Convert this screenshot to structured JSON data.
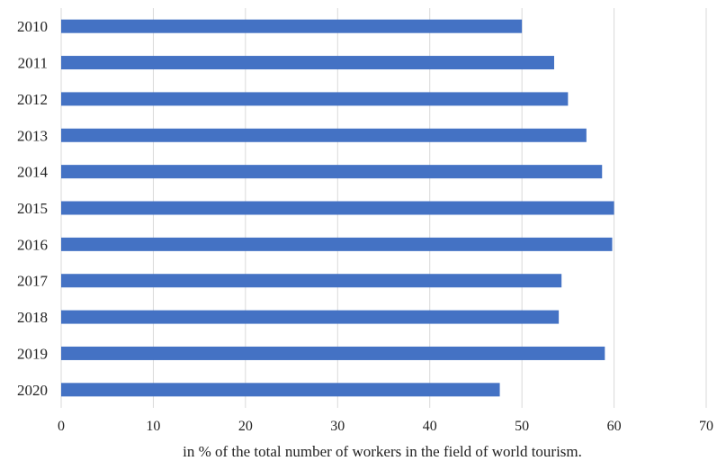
{
  "chart_data": {
    "type": "bar",
    "orientation": "horizontal",
    "categories": [
      "2010",
      "2011",
      "2012",
      "2013",
      "2014",
      "2015",
      "2016",
      "2017",
      "2018",
      "2019",
      "2020"
    ],
    "values": [
      50,
      53.5,
      55,
      57,
      58.7,
      60,
      59.8,
      54.3,
      54,
      59,
      47.6
    ],
    "xlabel": "in % of the total number of workers in the field of world tourism.",
    "ylabel": "",
    "xlim": [
      0,
      70
    ],
    "xticks": [
      0,
      10,
      20,
      30,
      40,
      50,
      60,
      70
    ],
    "grid": "vertical",
    "bar_color": "#4472C4",
    "grid_color": "#d9d9d9"
  }
}
